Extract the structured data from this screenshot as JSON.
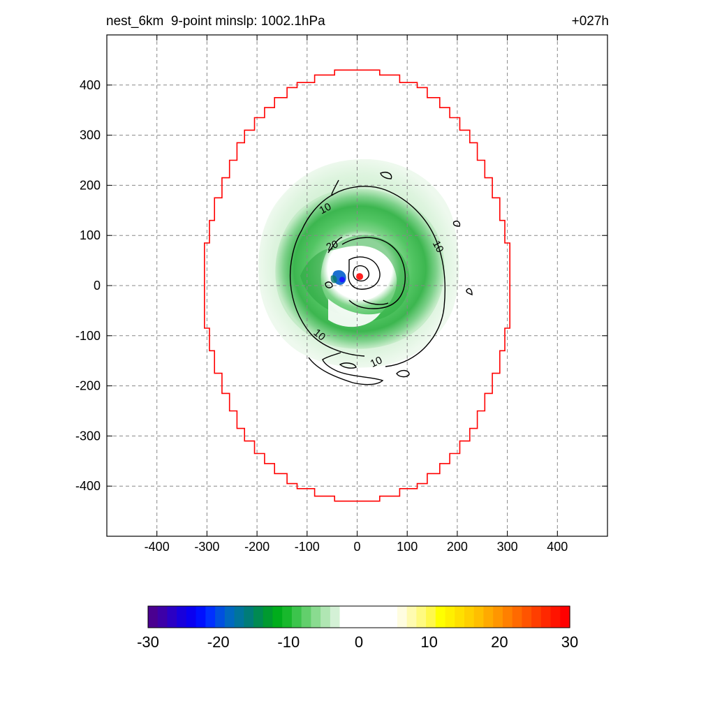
{
  "header": {
    "left_title": "nest_6km  9-point minslp: 1002.1hPa",
    "right_title": "+027h"
  },
  "colors": {
    "boundary": "#ff0000",
    "contour": "#000000",
    "grid": "#888888",
    "center_marker": "#ff2020",
    "min_marker": "#1a1aff"
  },
  "chart_data": {
    "type": "heatmap",
    "xlim": [
      -500,
      500
    ],
    "ylim": [
      -500,
      500
    ],
    "xticks": [
      -400,
      -300,
      -200,
      -100,
      0,
      100,
      200,
      300,
      400
    ],
    "yticks": [
      400,
      300,
      200,
      100,
      0,
      -100,
      -200,
      -300,
      -400
    ],
    "grid": "dashed",
    "boundary_step_polygon": [
      [
        -45,
        430
      ],
      [
        45,
        430
      ],
      [
        45,
        420
      ],
      [
        85,
        420
      ],
      [
        85,
        405
      ],
      [
        120,
        405
      ],
      [
        120,
        395
      ],
      [
        140,
        395
      ],
      [
        140,
        375
      ],
      [
        165,
        375
      ],
      [
        165,
        355
      ],
      [
        185,
        355
      ],
      [
        185,
        335
      ],
      [
        205,
        335
      ],
      [
        205,
        310
      ],
      [
        225,
        310
      ],
      [
        225,
        285
      ],
      [
        240,
        285
      ],
      [
        240,
        250
      ],
      [
        255,
        250
      ],
      [
        255,
        215
      ],
      [
        270,
        215
      ],
      [
        270,
        175
      ],
      [
        285,
        175
      ],
      [
        285,
        130
      ],
      [
        295,
        130
      ],
      [
        295,
        85
      ],
      [
        305,
        85
      ],
      [
        305,
        30
      ],
      [
        305,
        -30
      ],
      [
        305,
        -85
      ],
      [
        295,
        -85
      ],
      [
        295,
        -130
      ],
      [
        285,
        -130
      ],
      [
        285,
        -175
      ],
      [
        270,
        -175
      ],
      [
        270,
        -215
      ],
      [
        255,
        -215
      ],
      [
        255,
        -250
      ],
      [
        240,
        -250
      ],
      [
        240,
        -285
      ],
      [
        225,
        -285
      ],
      [
        225,
        -310
      ],
      [
        205,
        -310
      ],
      [
        205,
        -335
      ],
      [
        185,
        -335
      ],
      [
        185,
        -355
      ],
      [
        165,
        -355
      ],
      [
        165,
        -375
      ],
      [
        140,
        -375
      ],
      [
        140,
        -395
      ],
      [
        120,
        -395
      ],
      [
        120,
        -405
      ],
      [
        85,
        -405
      ],
      [
        85,
        -420
      ],
      [
        45,
        -420
      ],
      [
        45,
        -430
      ],
      [
        -45,
        -430
      ],
      [
        -45,
        -420
      ],
      [
        -85,
        -420
      ],
      [
        -85,
        -405
      ],
      [
        -120,
        -405
      ],
      [
        -120,
        -395
      ],
      [
        -140,
        -395
      ],
      [
        -140,
        -375
      ],
      [
        -165,
        -375
      ],
      [
        -165,
        -355
      ],
      [
        -185,
        -355
      ],
      [
        -185,
        -335
      ],
      [
        -205,
        -335
      ],
      [
        -205,
        -310
      ],
      [
        -225,
        -310
      ],
      [
        -225,
        -285
      ],
      [
        -240,
        -285
      ],
      [
        -240,
        -250
      ],
      [
        -255,
        -250
      ],
      [
        -255,
        -215
      ],
      [
        -270,
        -215
      ],
      [
        -270,
        -175
      ],
      [
        -285,
        -175
      ],
      [
        -285,
        -130
      ],
      [
        -295,
        -130
      ],
      [
        -295,
        -85
      ],
      [
        -305,
        -85
      ],
      [
        -305,
        -30
      ],
      [
        -305,
        30
      ],
      [
        -305,
        85
      ],
      [
        -295,
        85
      ],
      [
        -295,
        130
      ],
      [
        -285,
        130
      ],
      [
        -285,
        175
      ],
      [
        -270,
        175
      ],
      [
        -270,
        215
      ],
      [
        -255,
        215
      ],
      [
        -255,
        250
      ],
      [
        -240,
        250
      ],
      [
        -240,
        285
      ],
      [
        -225,
        285
      ],
      [
        -225,
        310
      ],
      [
        -205,
        310
      ],
      [
        -205,
        335
      ],
      [
        -185,
        335
      ],
      [
        -185,
        355
      ],
      [
        -165,
        355
      ],
      [
        -165,
        375
      ],
      [
        -140,
        375
      ],
      [
        -140,
        395
      ],
      [
        -120,
        395
      ],
      [
        -120,
        405
      ],
      [
        -85,
        405
      ],
      [
        -85,
        420
      ],
      [
        -45,
        420
      ]
    ],
    "contour_labels": [
      {
        "text": "10",
        "x": -64,
        "y": 154,
        "rot": -28
      },
      {
        "text": "10",
        "x": 162,
        "y": 78,
        "rot": 62
      },
      {
        "text": "10",
        "x": -75,
        "y": -98,
        "rot": 40
      },
      {
        "text": "10",
        "x": 38,
        "y": -152,
        "rot": -25
      },
      {
        "text": "20",
        "x": -50,
        "y": 80,
        "rot": -22
      }
    ],
    "storm_center": {
      "x": 5,
      "y": 18
    },
    "min_marker": {
      "x": -30,
      "y": 12
    },
    "colorbar": {
      "ticks": [
        "-30",
        "-20",
        "-10",
        "0",
        "10",
        "20",
        "30"
      ],
      "range": [
        -30,
        30
      ],
      "colors": [
        "#4a0090",
        "#3d00a8",
        "#2b00c4",
        "#1800dc",
        "#0a00f0",
        "#0010ff",
        "#0030ff",
        "#0050e0",
        "#0068c0",
        "#00749c",
        "#007c78",
        "#008a52",
        "#009a30",
        "#00ad1c",
        "#18b82c",
        "#3cc44c",
        "#62cf6c",
        "#8adb90",
        "#b0e6b3",
        "#d4f1d6",
        "#ffffff",
        "#ffffff",
        "#ffffff",
        "#ffffff",
        "#ffffff",
        "#ffffff",
        "#fffde0",
        "#fffbb0",
        "#fffa80",
        "#fff84c",
        "#ffff00",
        "#fff000",
        "#ffe000",
        "#ffd000",
        "#ffbf00",
        "#ffaa00",
        "#ff9600",
        "#ff8000",
        "#ff6a00",
        "#ff5400",
        "#ff3e00",
        "#ff2800",
        "#ff1400",
        "#ff0000"
      ]
    }
  }
}
